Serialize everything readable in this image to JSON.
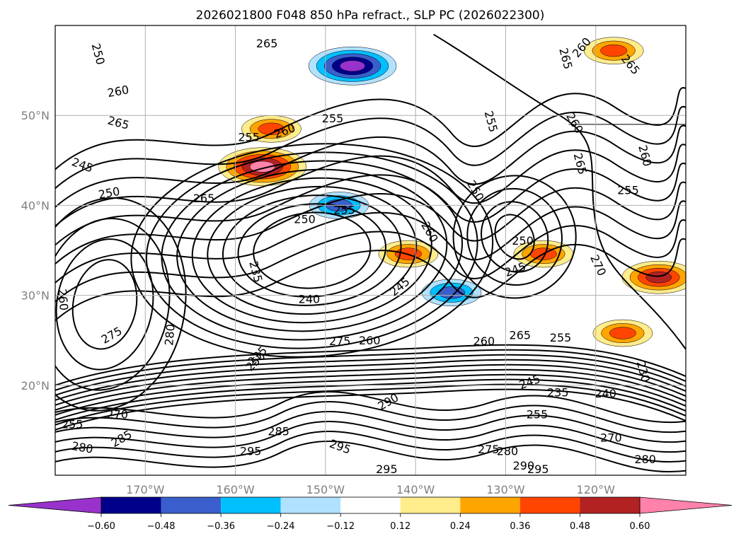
{
  "chart_data": {
    "type": "contour-map",
    "title": "2026021800 F048 850 hPa refract., SLP PC (2026022300)",
    "xlabel": "",
    "ylabel": "",
    "lon_range": [
      -180,
      -110
    ],
    "lat_range": [
      10,
      60
    ],
    "x_ticks": [
      {
        "value": -170,
        "label": "170°W"
      },
      {
        "value": -160,
        "label": "160°W"
      },
      {
        "value": -150,
        "label": "150°W"
      },
      {
        "value": -140,
        "label": "140°W"
      },
      {
        "value": -130,
        "label": "130°W"
      },
      {
        "value": -120,
        "label": "120°W"
      }
    ],
    "y_ticks": [
      {
        "value": 20,
        "label": "20°N"
      },
      {
        "value": 30,
        "label": "30°N"
      },
      {
        "value": 40,
        "label": "40°N"
      },
      {
        "value": 50,
        "label": "50°N"
      }
    ],
    "grid": true,
    "colorbar": {
      "orientation": "horizontal",
      "extend": "both",
      "boundaries": [
        -0.72,
        -0.6,
        -0.48,
        -0.36,
        -0.24,
        -0.12,
        0.12,
        0.24,
        0.36,
        0.48,
        0.6,
        0.72
      ],
      "colors": [
        "#9932cc",
        "#00008b",
        "#3a5fcd",
        "#00bfff",
        "#b0e2ff",
        "#ffffff",
        "#ffec8b",
        "#ffa500",
        "#ff4500",
        "#b22222",
        "#ff82ab"
      ],
      "under_color": "#9932cc",
      "over_color": "#ff82ab",
      "tick_labels": [
        "−0.60",
        "−0.48",
        "−0.36",
        "−0.24",
        "−0.12",
        "0.12",
        "0.24",
        "0.36",
        "0.48",
        "0.60"
      ]
    },
    "shaded_features": [
      {
        "lon": -147,
        "lat": 55.5,
        "value": -0.6
      },
      {
        "lon": -156,
        "lat": 48.5,
        "value": 0.42
      },
      {
        "lon": -157,
        "lat": 44.3,
        "value": 0.62
      },
      {
        "lon": -148.5,
        "lat": 40,
        "value": -0.36
      },
      {
        "lon": -140.8,
        "lat": 34.6,
        "value": 0.45
      },
      {
        "lon": -125.8,
        "lat": 34.6,
        "value": 0.45
      },
      {
        "lon": -117,
        "lat": 25.8,
        "value": 0.4
      },
      {
        "lon": -113,
        "lat": 32,
        "value": 0.5
      },
      {
        "lon": -118,
        "lat": 57.2,
        "value": 0.45
      },
      {
        "lon": -136,
        "lat": 30.3,
        "value": -0.36
      }
    ],
    "contour_labels": [
      {
        "text": "250",
        "lon": -175.3,
        "lat": 56.8,
        "rot": 75
      },
      {
        "text": "265",
        "lon": -156.5,
        "lat": 57.9,
        "rot": 0
      },
      {
        "text": "260",
        "lon": -173,
        "lat": 52.6,
        "rot": -10
      },
      {
        "text": "265",
        "lon": -173,
        "lat": 49.1,
        "rot": 15
      },
      {
        "text": "255",
        "lon": -158.5,
        "lat": 47.5,
        "rot": 0
      },
      {
        "text": "260",
        "lon": -154.5,
        "lat": 48.2,
        "rot": -20
      },
      {
        "text": "255",
        "lon": -149.2,
        "lat": 49.6,
        "rot": 0
      },
      {
        "text": "245",
        "lon": -177,
        "lat": 44.4,
        "rot": 20
      },
      {
        "text": "250",
        "lon": -174,
        "lat": 41.3,
        "rot": -10
      },
      {
        "text": "265",
        "lon": -163.5,
        "lat": 40.7,
        "rot": 0
      },
      {
        "text": "250",
        "lon": -152.3,
        "lat": 38.4,
        "rot": 0
      },
      {
        "text": "255",
        "lon": -147.9,
        "lat": 39.4,
        "rot": 0
      },
      {
        "text": "260",
        "lon": -138.5,
        "lat": 37,
        "rot": 60
      },
      {
        "text": "235",
        "lon": -157.8,
        "lat": 32.6,
        "rot": 75
      },
      {
        "text": "240",
        "lon": -151.8,
        "lat": 29.5,
        "rot": 0
      },
      {
        "text": "245",
        "lon": -141.7,
        "lat": 30.9,
        "rot": -40
      },
      {
        "text": "255",
        "lon": -131.7,
        "lat": 49.3,
        "rot": 75
      },
      {
        "text": "250",
        "lon": -133.4,
        "lat": 41.6,
        "rot": 60
      },
      {
        "text": "250",
        "lon": -128.1,
        "lat": 36,
        "rot": 0
      },
      {
        "text": "245",
        "lon": -128.9,
        "lat": 32.8,
        "rot": -20
      },
      {
        "text": "265",
        "lon": -123.4,
        "lat": 56.3,
        "rot": 75
      },
      {
        "text": "260",
        "lon": -121.5,
        "lat": 57.5,
        "rot": -50
      },
      {
        "text": "265",
        "lon": -116.2,
        "lat": 55.6,
        "rot": 50
      },
      {
        "text": "260",
        "lon": -122.4,
        "lat": 49.1,
        "rot": 60
      },
      {
        "text": "265",
        "lon": -121.8,
        "lat": 44.6,
        "rot": 75
      },
      {
        "text": "260",
        "lon": -114.6,
        "lat": 45.5,
        "rot": 75
      },
      {
        "text": "255",
        "lon": -116.4,
        "lat": 41.6,
        "rot": 0
      },
      {
        "text": "270",
        "lon": -119.8,
        "lat": 33.3,
        "rot": 65
      },
      {
        "text": "260",
        "lon": -179.2,
        "lat": 29.5,
        "rot": 85
      },
      {
        "text": "275",
        "lon": -173.7,
        "lat": 25.5,
        "rot": -30
      },
      {
        "text": "280",
        "lon": -167.2,
        "lat": 25.6,
        "rot": -85
      },
      {
        "text": "275",
        "lon": -148.4,
        "lat": 24.8,
        "rot": 0
      },
      {
        "text": "260",
        "lon": -145.1,
        "lat": 24.9,
        "rot": 0
      },
      {
        "text": "260",
        "lon": -132.4,
        "lat": 24.8,
        "rot": 0
      },
      {
        "text": "265",
        "lon": -128.4,
        "lat": 25.5,
        "rot": 0
      },
      {
        "text": "255",
        "lon": -123.9,
        "lat": 25.2,
        "rot": 0
      },
      {
        "text": "230",
        "lon": -114.8,
        "lat": 21.5,
        "rot": 75
      },
      {
        "text": "245",
        "lon": -127.3,
        "lat": 20.3,
        "rot": -20
      },
      {
        "text": "235",
        "lon": -124.2,
        "lat": 19.1,
        "rot": 0
      },
      {
        "text": "240",
        "lon": -118.9,
        "lat": 19,
        "rot": 0
      },
      {
        "text": "255",
        "lon": -126.5,
        "lat": 16.7,
        "rot": 0
      },
      {
        "text": "290",
        "lon": -143,
        "lat": 18.1,
        "rot": -30
      },
      {
        "text": "285",
        "lon": -155.2,
        "lat": 14.8,
        "rot": 0
      },
      {
        "text": "295",
        "lon": -158.3,
        "lat": 12.6,
        "rot": 0
      },
      {
        "text": "295",
        "lon": -148.4,
        "lat": 13.1,
        "rot": 20
      },
      {
        "text": "295",
        "lon": -143.2,
        "lat": 10.6,
        "rot": 0
      },
      {
        "text": "275",
        "lon": -131.9,
        "lat": 12.8,
        "rot": 0
      },
      {
        "text": "280",
        "lon": -129.8,
        "lat": 12.6,
        "rot": 0
      },
      {
        "text": "290",
        "lon": -128,
        "lat": 11,
        "rot": 0
      },
      {
        "text": "295",
        "lon": -126.4,
        "lat": 10.6,
        "rot": 0
      },
      {
        "text": "270",
        "lon": -118.3,
        "lat": 14.1,
        "rot": 0
      },
      {
        "text": "280",
        "lon": -114.5,
        "lat": 11.7,
        "rot": 0
      },
      {
        "text": "255",
        "lon": -178.1,
        "lat": 15.6,
        "rot": 0
      },
      {
        "text": "280",
        "lon": -177,
        "lat": 13,
        "rot": 10
      },
      {
        "text": "285",
        "lon": -172.6,
        "lat": 14,
        "rot": -30
      },
      {
        "text": "270",
        "lon": -173.1,
        "lat": 16.7,
        "rot": 0
      },
      {
        "text": "235",
        "lon": -157.5,
        "lat": 23.2,
        "rot": -45
      },
      {
        "text": "250",
        "lon": -157.7,
        "lat": 22.6,
        "rot": -45
      }
    ]
  }
}
